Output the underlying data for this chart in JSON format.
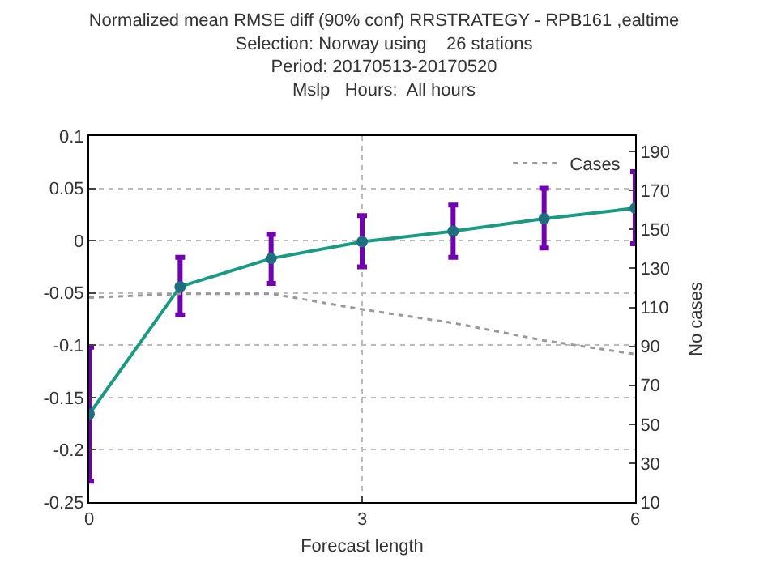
{
  "chart_data": {
    "type": "line",
    "title": "Normalized mean RMSE diff (90% conf) RRSTRATEGY - RPB161 ,ealtime",
    "subtitle": "Selection: Norway using    26 stations\nPeriod: 20170513-20170520\nMslp   Hours:  All hours",
    "xlabel": "Forecast length",
    "y2label": "No cases",
    "x": [
      0,
      1,
      2,
      3,
      4,
      5,
      6
    ],
    "series": [
      {
        "color": "#1a9a80",
        "marker": "circle",
        "line_style": "solid",
        "values": [
          -0.166,
          -0.044,
          -0.017,
          -0.001,
          0.009,
          0.021,
          0.031
        ],
        "errors": [
          [
            -0.23,
            -0.102
          ],
          [
            -0.071,
            -0.016
          ],
          [
            -0.041,
            0.006
          ],
          [
            -0.025,
            0.024
          ],
          [
            -0.016,
            0.034
          ],
          [
            -0.007,
            0.05
          ],
          [
            -0.003,
            0.066
          ]
        ]
      },
      {
        "name": "Cases",
        "color": "#999999",
        "axis": "y2",
        "marker": "none",
        "line_style": "dotted",
        "values": [
          115,
          117,
          117,
          109,
          102,
          93,
          86
        ]
      }
    ],
    "xlim": [
      0,
      6
    ],
    "xticks": [
      0,
      3,
      6
    ],
    "ylim": [
      -0.25,
      0.1
    ],
    "yticks": [
      -0.25,
      -0.2,
      -0.15,
      -0.1,
      -0.05,
      0,
      0.05,
      0.1
    ],
    "y2lim": [
      10,
      198
    ],
    "y2ticks": [
      10,
      30,
      50,
      70,
      90,
      110,
      130,
      150,
      170,
      190
    ],
    "grid": true,
    "legend": "top right"
  }
}
